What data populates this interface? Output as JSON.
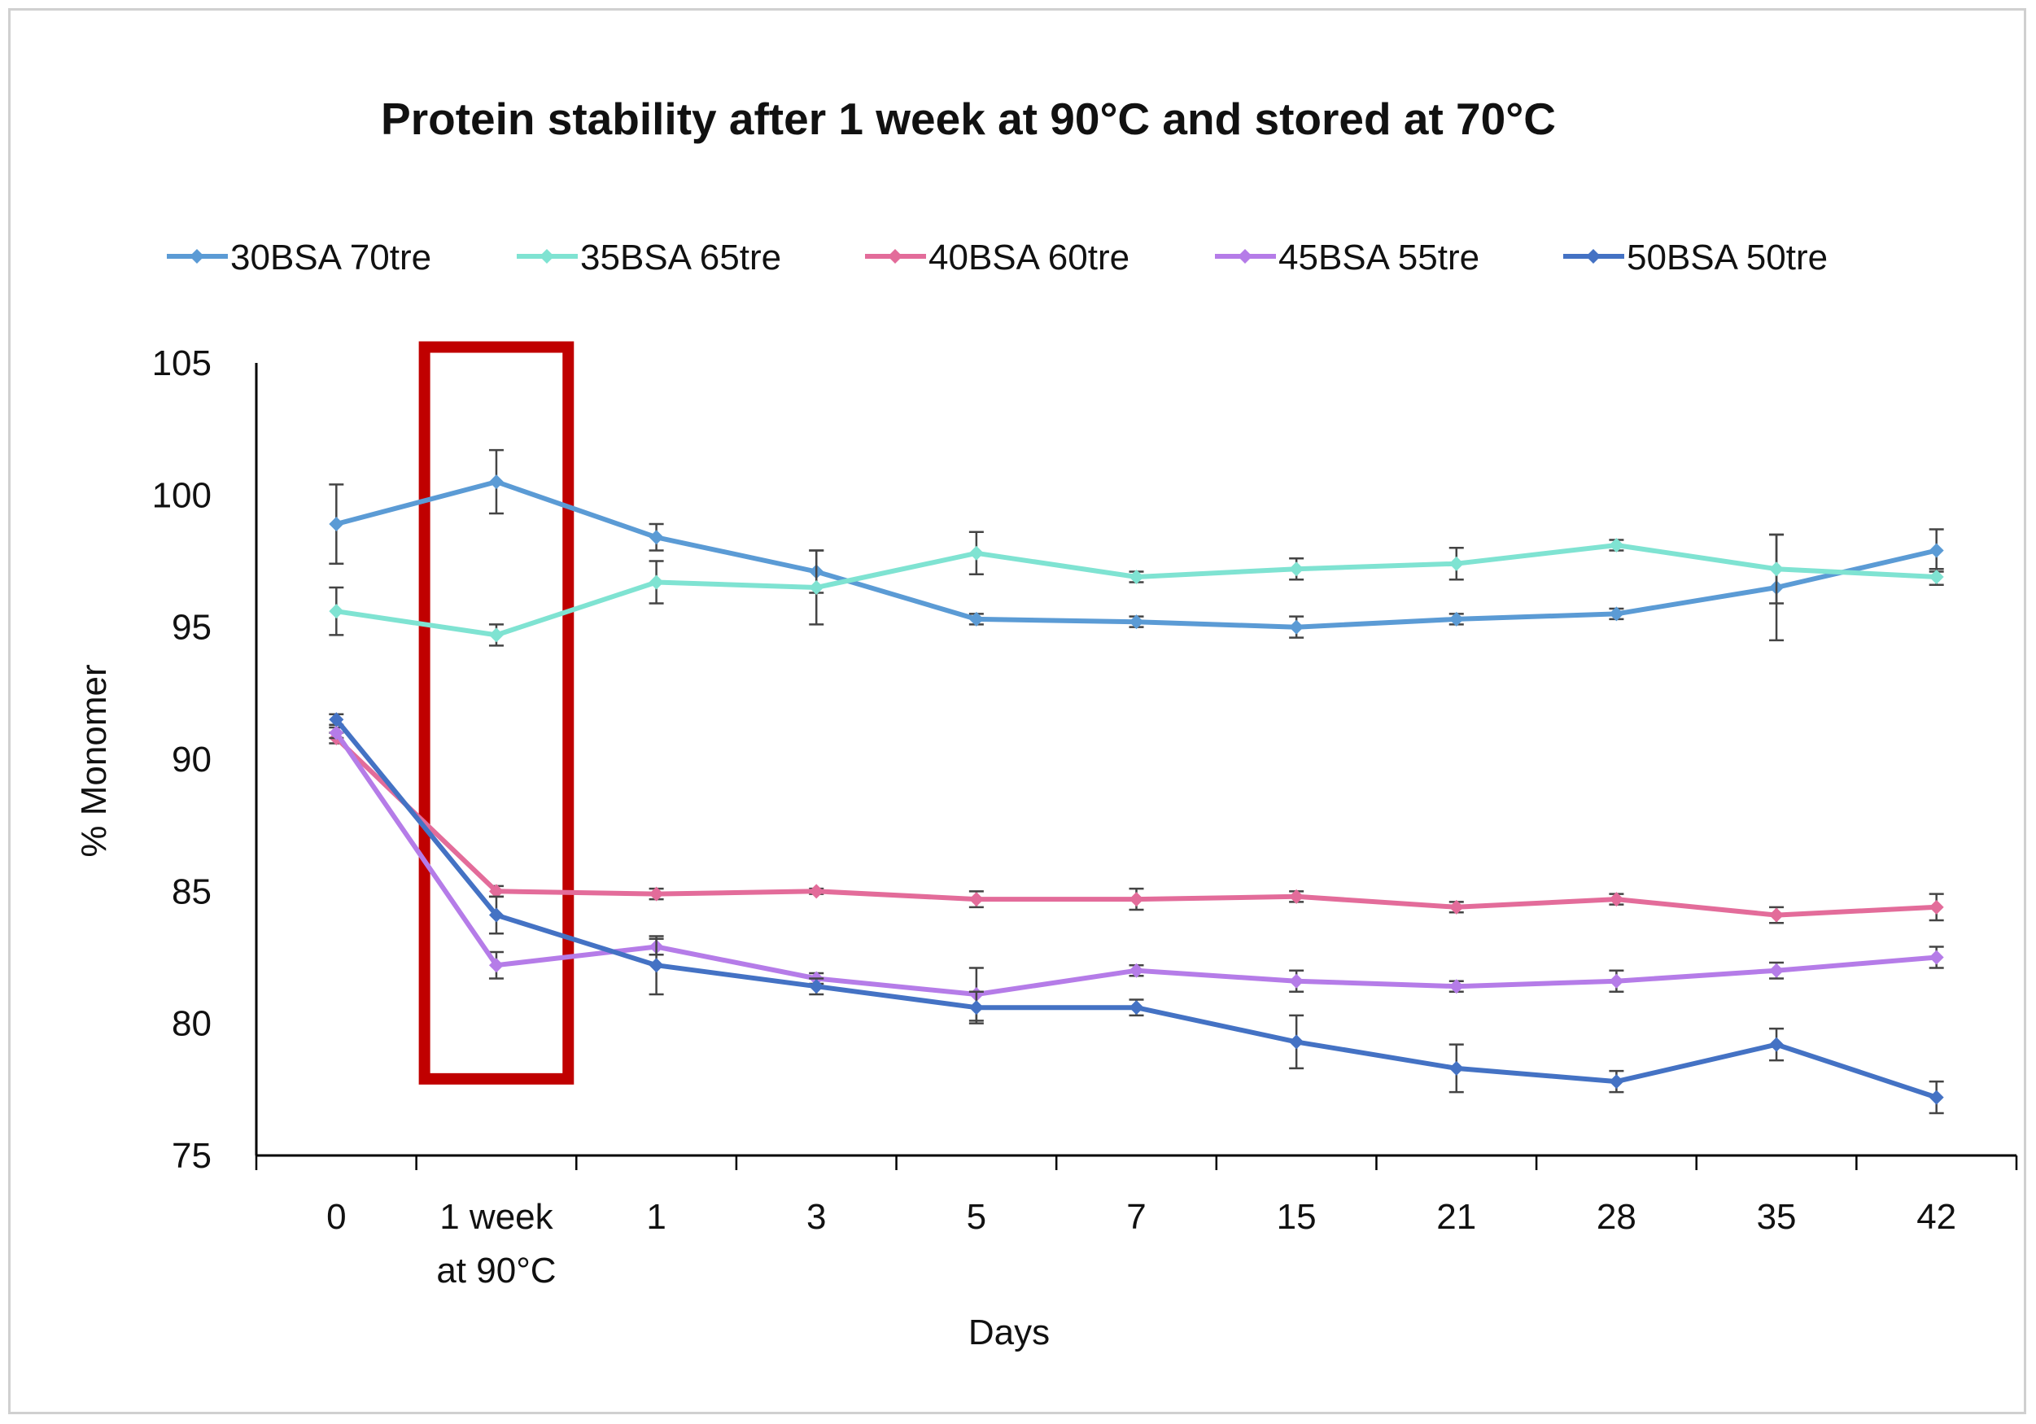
{
  "chart_data": {
    "type": "line",
    "title": "Protein stability after 1 week at 90°C and stored at 70°C",
    "xlabel": "Days",
    "ylabel": "% Monomer",
    "ylim": [
      75,
      105
    ],
    "yticks": [
      75,
      80,
      85,
      90,
      95,
      100,
      105
    ],
    "categories": [
      "0",
      "1 week\nat 90°C",
      "1",
      "3",
      "5",
      "7",
      "15",
      "21",
      "28",
      "35",
      "42"
    ],
    "legend_position": "top",
    "grid": false,
    "highlight": {
      "category_index": 1,
      "color": "#c00000",
      "y_range": [
        77.9,
        105.6
      ]
    },
    "series": [
      {
        "name": "30BSA 70tre",
        "color": "#5b9bd5",
        "values": [
          98.9,
          100.5,
          98.4,
          97.1,
          95.3,
          95.2,
          95.0,
          95.3,
          95.5,
          96.5,
          97.9
        ],
        "errors": [
          1.5,
          1.2,
          0.5,
          0.8,
          0.2,
          0.2,
          0.4,
          0.2,
          0.2,
          2.0,
          0.8
        ]
      },
      {
        "name": "35BSA 65tre",
        "color": "#7fe3d2",
        "values": [
          95.6,
          94.7,
          96.7,
          96.5,
          97.8,
          96.9,
          97.2,
          97.4,
          98.1,
          97.2,
          96.9
        ],
        "errors": [
          0.9,
          0.4,
          0.8,
          1.4,
          0.8,
          0.2,
          0.4,
          0.6,
          0.2,
          1.3,
          0.3
        ]
      },
      {
        "name": "40BSA 60tre",
        "color": "#e36c9a",
        "values": [
          90.8,
          85.0,
          84.9,
          85.0,
          84.7,
          84.7,
          84.8,
          84.4,
          84.7,
          84.1,
          84.4
        ],
        "errors": [
          0.2,
          0.2,
          0.2,
          0.1,
          0.3,
          0.4,
          0.2,
          0.2,
          0.2,
          0.3,
          0.5
        ]
      },
      {
        "name": "45BSA 55tre",
        "color": "#b57ce8",
        "values": [
          91.0,
          82.2,
          82.9,
          81.7,
          81.1,
          82.0,
          81.6,
          81.4,
          81.6,
          82.0,
          82.5
        ],
        "errors": [
          0.2,
          0.5,
          0.3,
          0.2,
          1.0,
          0.2,
          0.4,
          0.2,
          0.4,
          0.3,
          0.4
        ]
      },
      {
        "name": "50BSA 50tre",
        "color": "#4472c4",
        "values": [
          91.5,
          84.1,
          82.2,
          81.4,
          80.6,
          80.6,
          79.3,
          78.3,
          77.8,
          79.2,
          77.2
        ],
        "errors": [
          0.2,
          0.7,
          1.1,
          0.3,
          0.6,
          0.3,
          1.0,
          0.9,
          0.4,
          0.6,
          0.6
        ]
      }
    ]
  }
}
